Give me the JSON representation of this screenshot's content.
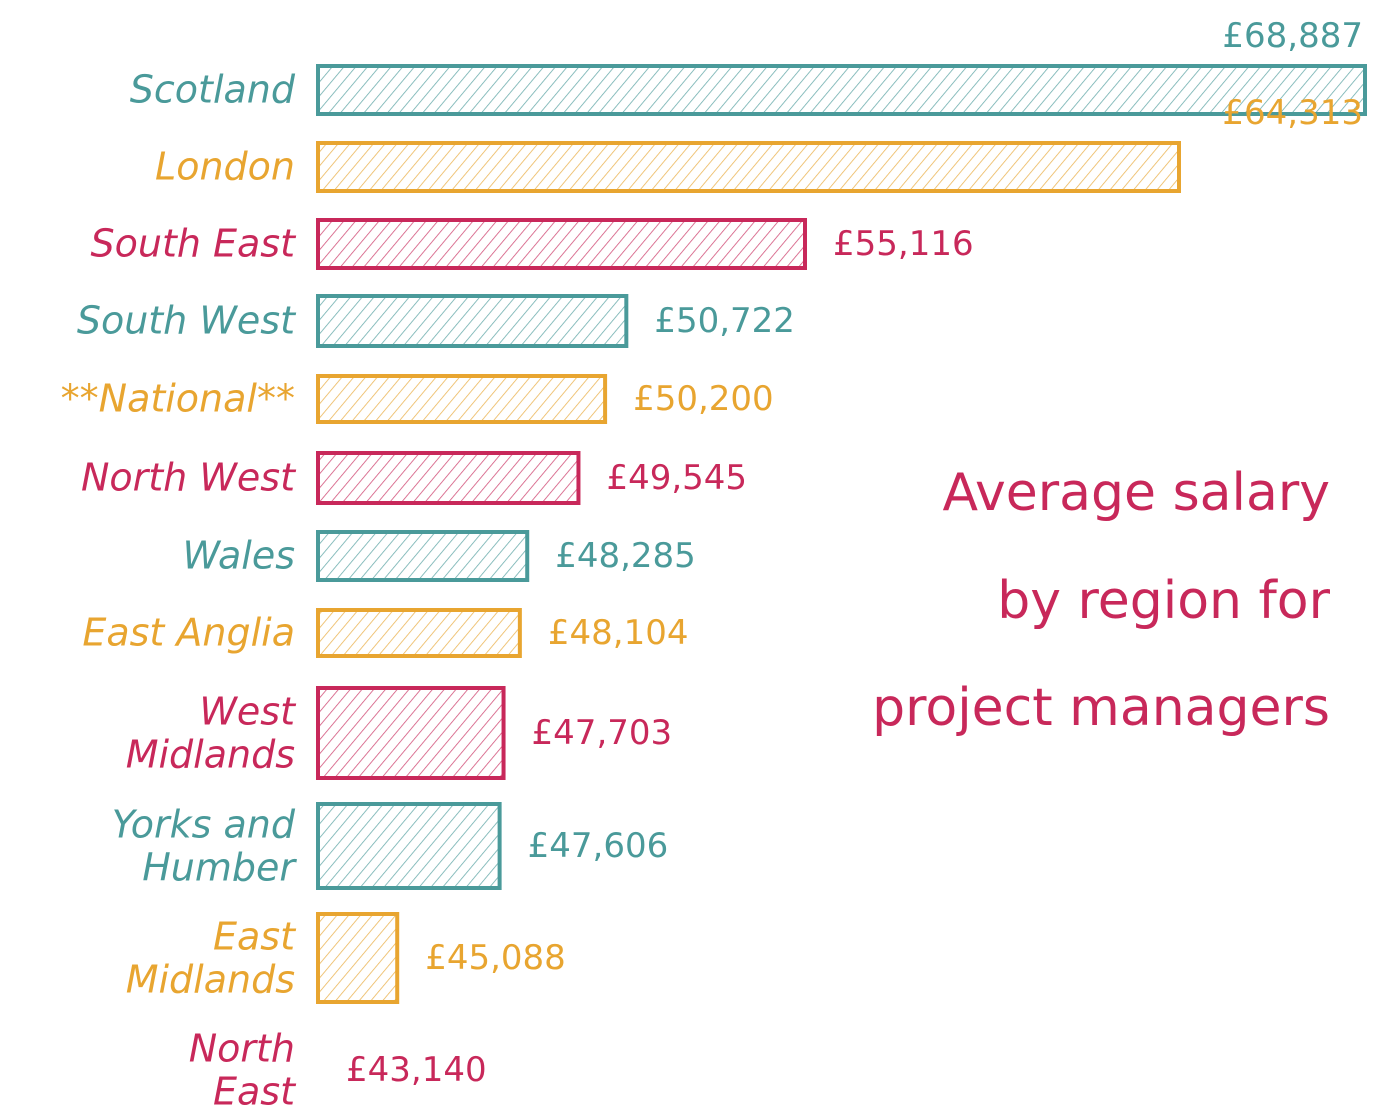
{
  "chart_data": {
    "type": "bar",
    "orientation": "horizontal",
    "title": "Average salary\nby region for\nproject managers",
    "title_color": "#c8285a",
    "categories": [
      "Scotland",
      "London",
      "South East",
      "South West",
      "**National**",
      "North West",
      "Wales",
      "East Anglia",
      "West\nMidlands",
      "Yorks and\nHumber",
      "East\nMidlands",
      "North\nEast"
    ],
    "values": [
      68887,
      64313,
      55116,
      50722,
      50200,
      49545,
      48285,
      48104,
      47703,
      47606,
      45088,
      43140
    ],
    "value_labels": [
      "£68,887",
      "£64,313",
      "£55,116",
      "£50,722",
      "£50,200",
      "£49,545",
      "£48,285",
      "£48,104",
      "£47,703",
      "£47,606",
      "£45,088",
      "£43,140"
    ],
    "colors": [
      "#4a9a9a",
      "#e8a530",
      "#c8285a",
      "#4a9a9a",
      "#e8a530",
      "#c8285a",
      "#4a9a9a",
      "#e8a530",
      "#c8285a",
      "#4a9a9a",
      "#e8a530",
      "#c8285a"
    ],
    "xlim": [
      43140,
      68887
    ]
  }
}
